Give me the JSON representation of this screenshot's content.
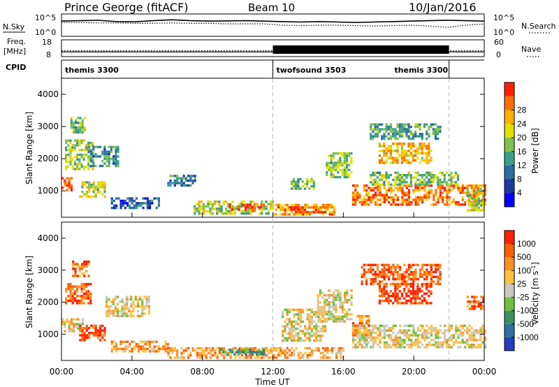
{
  "header": {
    "station": "Prince George (fitACF)",
    "beam": "Beam 10",
    "date": "10/Jan/2016"
  },
  "panel_labels": {
    "nsky": "N.Sky",
    "nsearch": "N.Search",
    "freq_line1": "Freq.",
    "freq_line2": "[MHz]",
    "nave": "Nave",
    "cpid": "CPID"
  },
  "noise_panel": {
    "left_ticks": [
      "10^5",
      "10^0"
    ],
    "right_ticks": [
      "10^5",
      "10^0"
    ],
    "sky_noise": [
      0.68,
      0.7,
      0.72,
      0.66,
      0.65,
      0.7,
      0.74,
      0.7,
      0.68,
      0.69,
      0.7,
      0.68,
      0.66,
      0.64,
      0.66,
      0.64,
      0.62,
      0.64,
      0.66,
      0.68,
      0.7,
      0.72,
      0.7,
      0.68
    ],
    "search_noise": [
      0.62,
      0.62,
      0.6,
      0.6,
      0.58,
      0.58,
      0.6,
      0.58,
      0.58,
      0.56,
      0.56,
      0.56,
      0.5,
      0.48,
      0.5,
      0.5,
      0.48,
      0.46,
      0.48,
      0.5,
      0.46,
      0.4,
      0.5,
      0.55
    ]
  },
  "freq_panel": {
    "left_ticks": [
      "18",
      "8"
    ],
    "right_ticks": [
      "60",
      "0"
    ],
    "freq_level": 0.35,
    "nave_low": 0.28,
    "nave_high_start_hour": 12,
    "nave_high_end_hour": 22
  },
  "cpid": [
    {
      "label": "themis 3300",
      "start_hour": 0
    },
    {
      "label": "twofsound 3503",
      "start_hour": 12
    },
    {
      "label": "themis 3300",
      "start_hour": 18.7
    }
  ],
  "divider_hours": [
    12,
    22
  ],
  "chart_data": [
    {
      "type": "heatmap",
      "title": "Power",
      "ylabel": "Slant Range [km]",
      "xlabel": "Time UT",
      "x_ticks": [
        "00:00",
        "04:00",
        "08:00",
        "12:00",
        "16:00",
        "20:00",
        "00:00"
      ],
      "xlim_hours": [
        0,
        24
      ],
      "ylim_km": [
        180,
        4500
      ],
      "y_ticks": [
        "1000",
        "2000",
        "3000",
        "4000"
      ],
      "colorbar": {
        "label": "Power [dB]",
        "ticks": [
          "4",
          "8",
          "12",
          "16",
          "20",
          "24",
          "28"
        ],
        "colors": [
          "#0000ff",
          "#1a3aa0",
          "#2b6ea0",
          "#3aa08a",
          "#7fc04a",
          "#e0e000",
          "#ffb000",
          "#ff7000",
          "#ff2000"
        ]
      },
      "regions": [
        {
          "t": [
            0.0,
            0.6
          ],
          "r": [
            1000,
            1500
          ],
          "level": 0.85
        },
        {
          "t": [
            0.2,
            1.8
          ],
          "r": [
            1700,
            2600
          ],
          "level": 0.55
        },
        {
          "t": [
            1.0,
            2.4
          ],
          "r": [
            800,
            1300
          ],
          "level": 0.6
        },
        {
          "t": [
            0.5,
            1.3
          ],
          "r": [
            2800,
            3300
          ],
          "level": 0.45
        },
        {
          "t": [
            1.5,
            3.2
          ],
          "r": [
            1800,
            2400
          ],
          "level": 0.35
        },
        {
          "t": [
            2.8,
            5.5
          ],
          "r": [
            500,
            800
          ],
          "level": 0.25
        },
        {
          "t": [
            6.0,
            7.6
          ],
          "r": [
            1200,
            1500
          ],
          "level": 0.3
        },
        {
          "t": [
            7.5,
            12.0
          ],
          "r": [
            300,
            700
          ],
          "level": 0.55
        },
        {
          "t": [
            9.5,
            11.5
          ],
          "r": [
            420,
            600
          ],
          "level": 0.9
        },
        {
          "t": [
            12.0,
            15.5
          ],
          "r": [
            250,
            600
          ],
          "level": 0.75
        },
        {
          "t": [
            13.0,
            15.0
          ],
          "r": [
            330,
            520
          ],
          "level": 0.95
        },
        {
          "t": [
            13.0,
            14.3
          ],
          "r": [
            1100,
            1400
          ],
          "level": 0.5
        },
        {
          "t": [
            15.0,
            16.5
          ],
          "r": [
            1400,
            2200
          ],
          "level": 0.5
        },
        {
          "t": [
            16.5,
            24.0
          ],
          "r": [
            600,
            1200
          ],
          "level": 0.8
        },
        {
          "t": [
            17.5,
            22.5
          ],
          "r": [
            1200,
            1600
          ],
          "level": 0.5
        },
        {
          "t": [
            18.0,
            21.0
          ],
          "r": [
            1900,
            2500
          ],
          "level": 0.7
        },
        {
          "t": [
            17.5,
            21.5
          ],
          "r": [
            2600,
            3100
          ],
          "level": 0.4
        },
        {
          "t": [
            23.0,
            24.0
          ],
          "r": [
            400,
            1100
          ],
          "level": 0.55
        }
      ]
    },
    {
      "type": "heatmap",
      "title": "Velocity",
      "ylabel": "Slant Range [km]",
      "xlabel": "Time UT",
      "x_ticks": [
        "00:00",
        "04:00",
        "08:00",
        "12:00",
        "16:00",
        "20:00",
        "00:00"
      ],
      "xlim_hours": [
        0,
        24
      ],
      "ylim_km": [
        180,
        4500
      ],
      "y_ticks": [
        "1000",
        "2000",
        "3000",
        "4000"
      ],
      "colorbar": {
        "label": "Velocity [m s^-1]",
        "ticks": [
          "1000",
          "500",
          "100",
          "25",
          "-25",
          "-100",
          "-500",
          "-1000"
        ],
        "colors": [
          "#2040c0",
          "#3070a0",
          "#3a9060",
          "#70c040",
          "#c8c8c0",
          "#ffc040",
          "#ff9020",
          "#ff6000",
          "#ff2000"
        ]
      },
      "regions": [
        {
          "t": [
            0.0,
            1.2
          ],
          "r": [
            1100,
            1500
          ],
          "level": 0.55
        },
        {
          "t": [
            0.2,
            1.6
          ],
          "r": [
            2000,
            2600
          ],
          "level": 0.85
        },
        {
          "t": [
            1.0,
            2.5
          ],
          "r": [
            800,
            1300
          ],
          "level": 0.9
        },
        {
          "t": [
            0.6,
            1.5
          ],
          "r": [
            2800,
            3300
          ],
          "level": 0.8
        },
        {
          "t": [
            2.5,
            5.0
          ],
          "r": [
            1600,
            2200
          ],
          "level": 0.55
        },
        {
          "t": [
            2.8,
            6.0
          ],
          "r": [
            450,
            800
          ],
          "level": 0.7
        },
        {
          "t": [
            6.0,
            12.0
          ],
          "r": [
            280,
            600
          ],
          "level": 0.7
        },
        {
          "t": [
            9.0,
            11.5
          ],
          "r": [
            350,
            550
          ],
          "level": 0.3
        },
        {
          "t": [
            12.0,
            16.0
          ],
          "r": [
            250,
            600
          ],
          "level": 0.68
        },
        {
          "t": [
            12.5,
            15.0
          ],
          "r": [
            800,
            1800
          ],
          "level": 0.55
        },
        {
          "t": [
            14.5,
            16.5
          ],
          "r": [
            1400,
            2400
          ],
          "level": 0.55
        },
        {
          "t": [
            16.5,
            24.0
          ],
          "r": [
            600,
            1300
          ],
          "level": 0.55
        },
        {
          "t": [
            16.5,
            17.5
          ],
          "r": [
            1000,
            1600
          ],
          "level": 0.72
        },
        {
          "t": [
            18.0,
            21.0
          ],
          "r": [
            2000,
            2600
          ],
          "level": 0.92
        },
        {
          "t": [
            17.0,
            21.5
          ],
          "r": [
            2600,
            3200
          ],
          "level": 0.85
        },
        {
          "t": [
            23.0,
            24.0
          ],
          "r": [
            1800,
            2200
          ],
          "level": 0.8
        }
      ]
    }
  ]
}
